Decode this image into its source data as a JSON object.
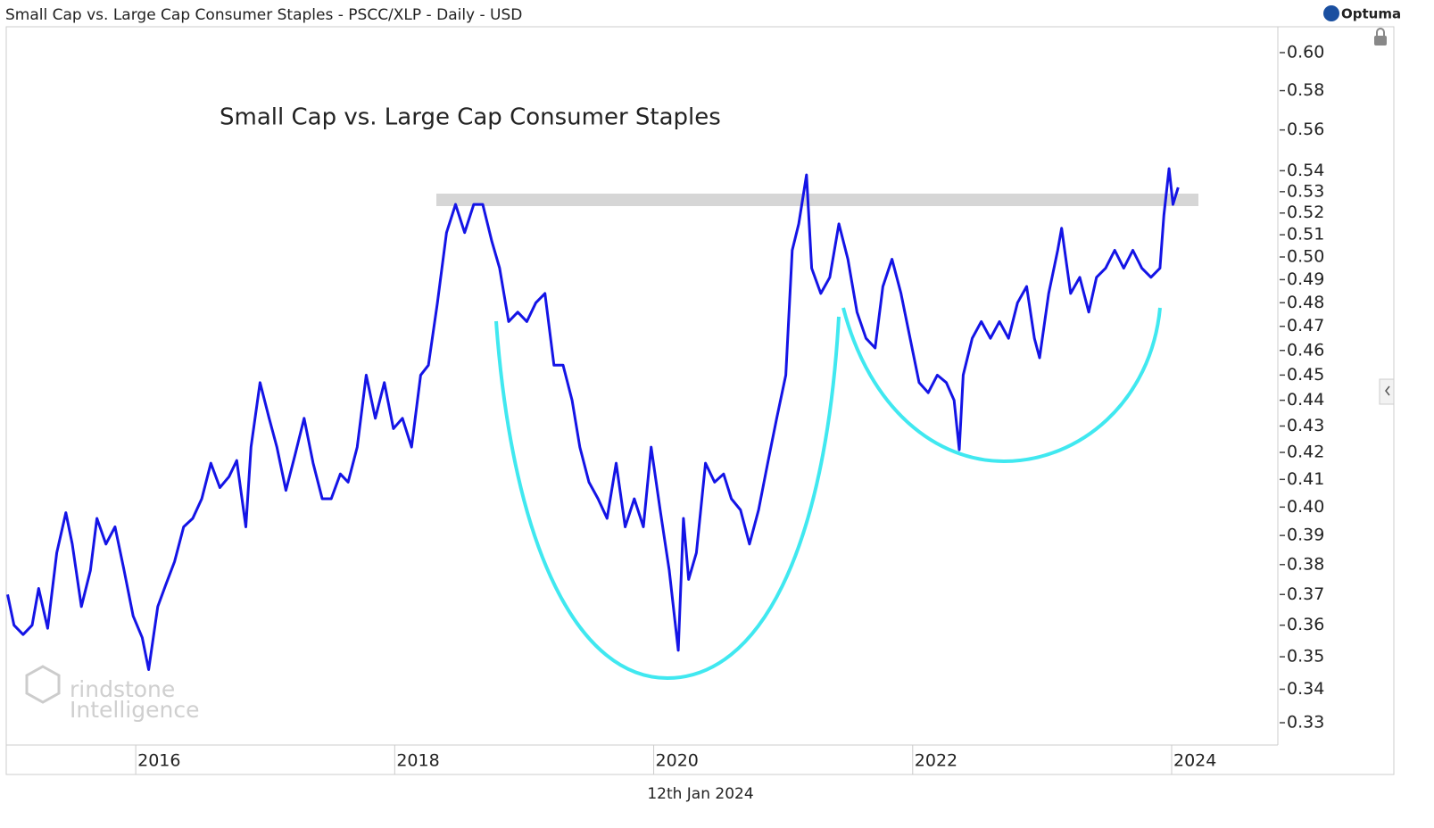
{
  "header": {
    "title": "Small Cap vs. Large Cap Consumer Staples - PSCC/XLP - Daily - USD",
    "brand": "Optuma",
    "date": "12th Jan 2024"
  },
  "watermark": {
    "line1": "rindstone",
    "line2": "Intelligence"
  },
  "chart_data": {
    "type": "line",
    "title": "Small Cap vs. Large Cap Consumer Staples",
    "color": "#1414e6",
    "log_scale": true,
    "xlim": [
      2015.0,
      2024.82
    ],
    "xticks": [
      2016,
      2018,
      2020,
      2022,
      2024
    ],
    "ylim": [
      0.3235,
      0.614
    ],
    "yticks": [
      {
        "value": 0.6,
        "label": "0.60"
      },
      0.58,
      0.56,
      0.54,
      0.53,
      0.52,
      0.51,
      {
        "value": 0.5,
        "label": "0.50"
      },
      0.49,
      0.48,
      0.47,
      0.46,
      0.45,
      0.44,
      0.43,
      0.42,
      0.41,
      {
        "value": 0.4,
        "label": "0.40"
      },
      0.39,
      0.38,
      0.37,
      0.36,
      0.35,
      0.34,
      0.33
    ],
    "x": [
      2015.01,
      2015.06,
      2015.13,
      2015.2,
      2015.25,
      2015.32,
      2015.39,
      2015.46,
      2015.51,
      2015.58,
      2015.65,
      2015.7,
      2015.77,
      2015.84,
      2015.91,
      2015.98,
      2016.05,
      2016.1,
      2016.17,
      2016.23,
      2016.3,
      2016.37,
      2016.44,
      2016.51,
      2016.58,
      2016.65,
      2016.72,
      2016.78,
      2016.85,
      2016.89,
      2016.96,
      2017.03,
      2017.09,
      2017.16,
      2017.23,
      2017.3,
      2017.37,
      2017.44,
      2017.51,
      2017.58,
      2017.64,
      2017.71,
      2017.78,
      2017.85,
      2017.92,
      2017.99,
      2018.06,
      2018.13,
      2018.2,
      2018.26,
      2018.33,
      2018.4,
      2018.47,
      2018.54,
      2018.61,
      2018.68,
      2018.75,
      2018.81,
      2018.88,
      2018.95,
      2019.02,
      2019.09,
      2019.16,
      2019.23,
      2019.3,
      2019.37,
      2019.43,
      2019.5,
      2019.57,
      2019.64,
      2019.71,
      2019.78,
      2019.85,
      2019.92,
      2019.98,
      2020.05,
      2020.12,
      2020.19,
      2020.23,
      2020.27,
      2020.33,
      2020.4,
      2020.47,
      2020.54,
      2020.6,
      2020.67,
      2020.74,
      2020.81,
      2020.88,
      2020.95,
      2021.02,
      2021.07,
      2021.12,
      2021.18,
      2021.22,
      2021.29,
      2021.36,
      2021.43,
      2021.5,
      2021.57,
      2021.64,
      2021.71,
      2021.77,
      2021.84,
      2021.91,
      2021.98,
      2022.05,
      2022.12,
      2022.19,
      2022.26,
      2022.32,
      2022.36,
      2022.39,
      2022.46,
      2022.53,
      2022.6,
      2022.67,
      2022.74,
      2022.81,
      2022.88,
      2022.94,
      2022.98,
      2023.05,
      2023.12,
      2023.15,
      2023.22,
      2023.29,
      2023.36,
      2023.42,
      2023.49,
      2023.56,
      2023.63,
      2023.7,
      2023.77,
      2023.84,
      2023.91,
      2023.94,
      2023.98,
      2024.01,
      2024.05
    ],
    "values": [
      0.37,
      0.36,
      0.357,
      0.36,
      0.372,
      0.359,
      0.384,
      0.398,
      0.387,
      0.366,
      0.378,
      0.396,
      0.387,
      0.393,
      0.378,
      0.363,
      0.356,
      0.346,
      0.366,
      0.373,
      0.381,
      0.393,
      0.396,
      0.403,
      0.416,
      0.407,
      0.411,
      0.417,
      0.393,
      0.422,
      0.447,
      0.433,
      0.422,
      0.406,
      0.419,
      0.433,
      0.416,
      0.403,
      0.403,
      0.412,
      0.409,
      0.422,
      0.45,
      0.433,
      0.447,
      0.429,
      0.433,
      0.422,
      0.45,
      0.454,
      0.48,
      0.511,
      0.524,
      0.511,
      0.524,
      0.524,
      0.507,
      0.495,
      0.472,
      0.476,
      0.472,
      0.48,
      0.484,
      0.454,
      0.454,
      0.44,
      0.422,
      0.409,
      0.403,
      0.396,
      0.416,
      0.393,
      0.403,
      0.393,
      0.422,
      0.399,
      0.378,
      0.352,
      0.396,
      0.375,
      0.384,
      0.416,
      0.409,
      0.412,
      0.403,
      0.399,
      0.387,
      0.399,
      0.416,
      0.433,
      0.45,
      0.503,
      0.515,
      0.538,
      0.495,
      0.484,
      0.491,
      0.515,
      0.499,
      0.476,
      0.465,
      0.461,
      0.487,
      0.499,
      0.484,
      0.465,
      0.447,
      0.443,
      0.45,
      0.447,
      0.44,
      0.421,
      0.45,
      0.465,
      0.472,
      0.465,
      0.472,
      0.465,
      0.48,
      0.487,
      0.465,
      0.457,
      0.484,
      0.503,
      0.513,
      0.484,
      0.491,
      0.476,
      0.491,
      0.495,
      0.503,
      0.495,
      0.503,
      0.495,
      0.491,
      0.495,
      0.519,
      0.541,
      0.524,
      0.532
    ]
  }
}
